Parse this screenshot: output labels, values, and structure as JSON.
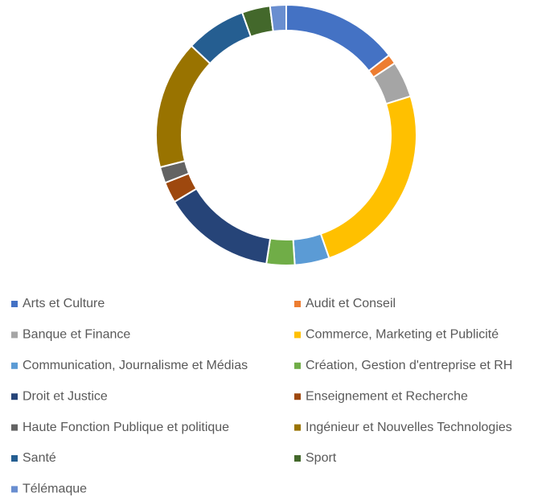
{
  "chart_data": {
    "type": "donut",
    "categories": [
      "Arts et Culture",
      "Audit et Conseil",
      "Banque et Finance",
      "Commerce, Marketing et Publicité",
      "Communication, Journalisme et Médias",
      "Création, Gestion d'entreprise et RH",
      "Droit et Justice",
      "Enseignement et Recherche",
      "Haute Fonction Publique et politique",
      "Ingénieur et Nouvelles Technologies",
      "Santé",
      "Sport",
      "Télémaque"
    ],
    "values": [
      14.5,
      1.2,
      4.5,
      24.5,
      4.3,
      3.5,
      14,
      2.6,
      2,
      16,
      7.5,
      3.5,
      2
    ],
    "colors": [
      "#4472C4",
      "#ED7D31",
      "#A5A5A5",
      "#FFC000",
      "#5B9BD5",
      "#70AD47",
      "#264478",
      "#9E480E",
      "#636363",
      "#997300",
      "#255E91",
      "#43682B",
      "#698ED0"
    ],
    "legend": "bottom"
  }
}
